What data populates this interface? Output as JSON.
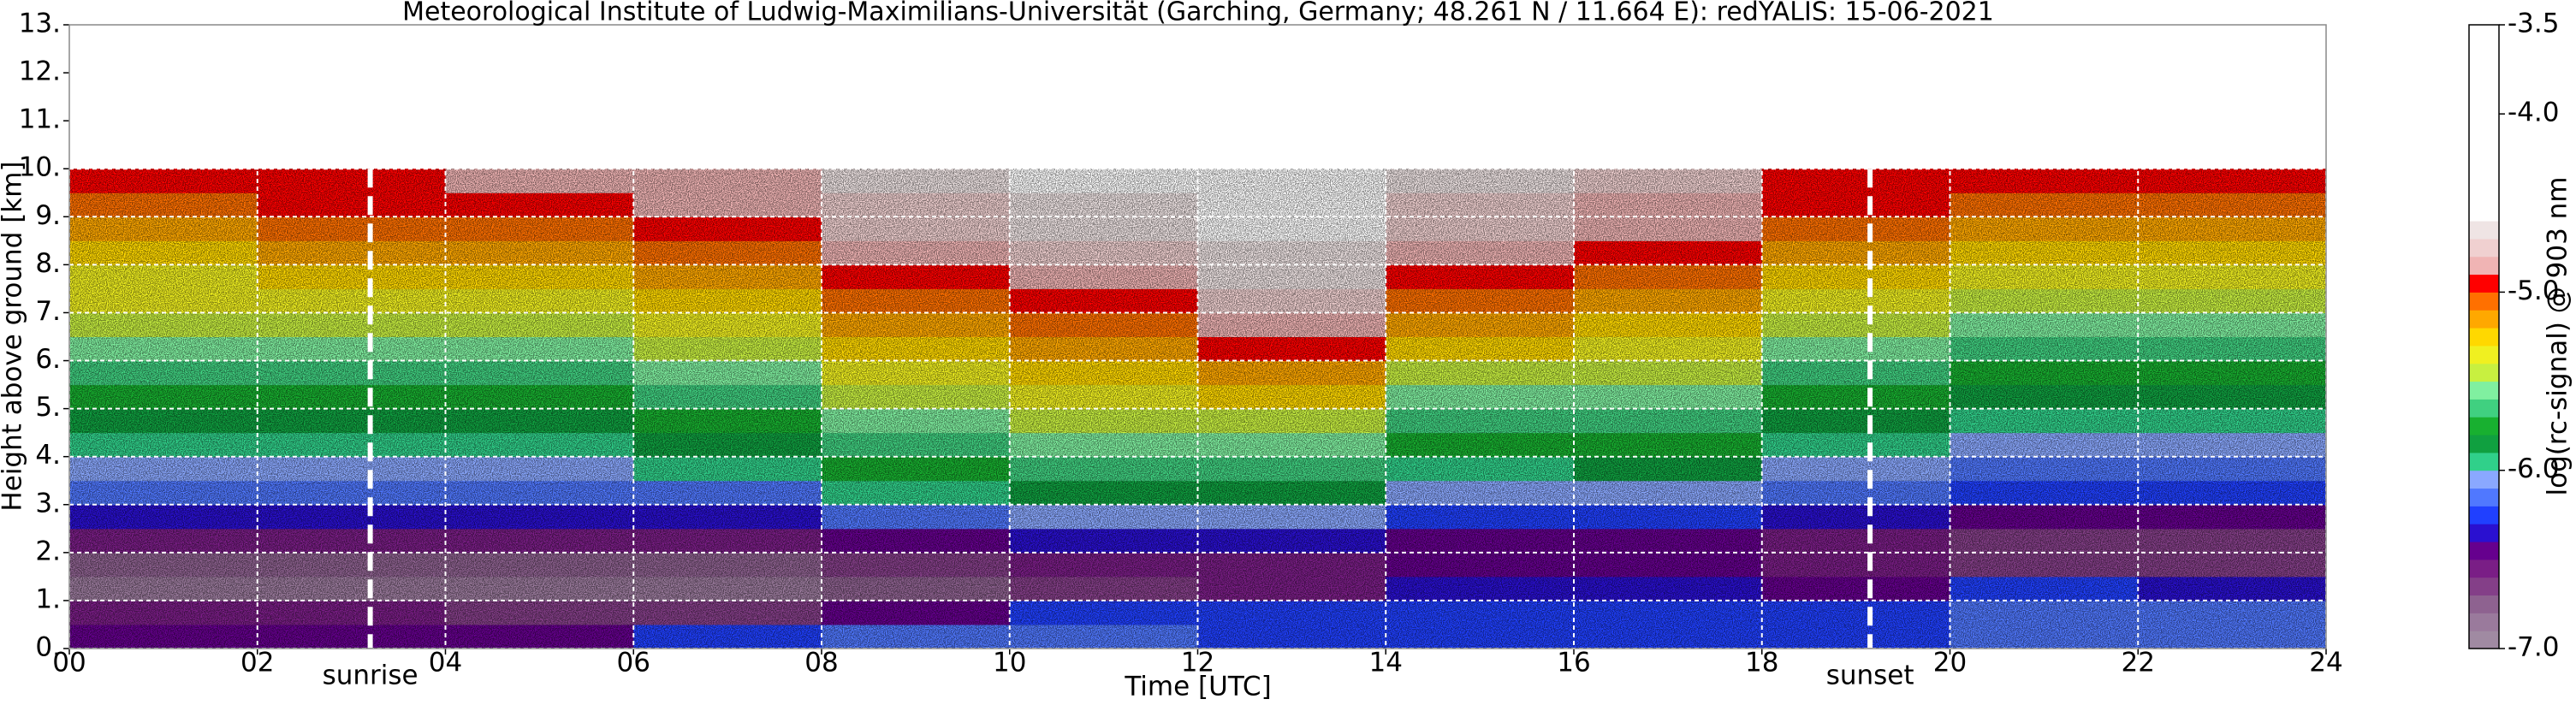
{
  "chart_data": {
    "type": "heatmap",
    "title": "Meteorological Institute of Ludwig-Maximilians-Universität (Garching, Germany; 48.261 N / 11.664 E):    redYALIS: 15-06-2021",
    "x_label": "Time [UTC]",
    "y_label": "Height above ground [km]",
    "colorbar_label": "log(rc-signal) @ 903 nm",
    "xlim": [
      0,
      24
    ],
    "xticks": [
      {
        "value": 0,
        "label": "00"
      },
      {
        "value": 2,
        "label": "02"
      },
      {
        "value": 4,
        "label": "04"
      },
      {
        "value": 6,
        "label": "06"
      },
      {
        "value": 8,
        "label": "08"
      },
      10,
      12,
      14,
      16,
      18,
      20,
      22,
      24
    ],
    "ylim": [
      0,
      13
    ],
    "yticks": [
      {
        "value": 0,
        "label": "0."
      },
      {
        "value": 1,
        "label": "1."
      },
      {
        "value": 2,
        "label": "2."
      },
      {
        "value": 3,
        "label": "3."
      },
      {
        "value": 4,
        "label": "4."
      },
      {
        "value": 5,
        "label": "5."
      },
      {
        "value": 6,
        "label": "6."
      },
      {
        "value": 7,
        "label": "7."
      },
      {
        "value": 8,
        "label": "8."
      },
      {
        "value": 9,
        "label": "9."
      },
      {
        "value": 10,
        "label": "10."
      },
      {
        "value": 11,
        "label": "11."
      },
      {
        "value": 12,
        "label": "12."
      },
      {
        "value": 13,
        "label": "13."
      }
    ],
    "grid": true,
    "grid_color": "#ffffff",
    "x": [
      0,
      2,
      4,
      6,
      8,
      10,
      12,
      14,
      16,
      18,
      20,
      22,
      24
    ],
    "y": [
      0,
      0.5,
      1,
      1.5,
      2,
      2.5,
      3,
      3.5,
      4,
      4.5,
      5,
      5.5,
      6,
      6.5,
      7,
      7.5,
      8,
      8.5,
      9,
      9.5,
      10
    ],
    "values": [
      [
        -6.5,
        -6.5,
        -6.5,
        -6.3,
        -6.2,
        -6.2,
        -6.3,
        -6.3,
        -6.3,
        -6.3,
        -6.2,
        -6.2
      ],
      [
        -6.6,
        -6.6,
        -6.7,
        -6.7,
        -6.5,
        -6.3,
        -6.3,
        -6.3,
        -6.3,
        -6.3,
        -6.2,
        -6.2
      ],
      [
        -6.9,
        -6.9,
        -6.9,
        -6.9,
        -6.8,
        -6.7,
        -6.6,
        -6.4,
        -6.4,
        -6.5,
        -6.3,
        -6.4
      ],
      [
        -6.8,
        -6.8,
        -6.8,
        -6.8,
        -6.7,
        -6.6,
        -6.6,
        -6.5,
        -6.5,
        -6.6,
        -6.7,
        -6.7
      ],
      [
        -6.6,
        -6.6,
        -6.6,
        -6.6,
        -6.5,
        -6.4,
        -6.4,
        -6.5,
        -6.5,
        -6.6,
        -6.7,
        -6.7
      ],
      [
        -6.4,
        -6.4,
        -6.4,
        -6.4,
        -6.2,
        -6.1,
        -6.1,
        -6.3,
        -6.3,
        -6.4,
        -6.5,
        -6.5
      ],
      [
        -6.2,
        -6.2,
        -6.2,
        -6.2,
        -6.0,
        -5.9,
        -5.9,
        -6.1,
        -6.1,
        -6.2,
        -6.3,
        -6.3
      ],
      [
        -6.1,
        -6.1,
        -6.1,
        -6.0,
        -5.8,
        -5.7,
        -5.7,
        -6.0,
        -5.9,
        -6.1,
        -6.2,
        -6.2
      ],
      [
        -6.0,
        -6.0,
        -6.0,
        -5.9,
        -5.7,
        -5.6,
        -5.6,
        -5.8,
        -5.8,
        -6.0,
        -6.1,
        -6.1
      ],
      [
        -5.9,
        -5.9,
        -5.9,
        -5.8,
        -5.6,
        -5.5,
        -5.5,
        -5.7,
        -5.7,
        -5.9,
        -6.0,
        -6.0
      ],
      [
        -5.8,
        -5.8,
        -5.8,
        -5.7,
        -5.5,
        -5.4,
        -5.3,
        -5.6,
        -5.6,
        -5.8,
        -5.9,
        -5.9
      ],
      [
        -5.7,
        -5.7,
        -5.7,
        -5.6,
        -5.4,
        -5.3,
        -5.2,
        -5.5,
        -5.5,
        -5.7,
        -5.8,
        -5.8
      ],
      [
        -5.6,
        -5.6,
        -5.6,
        -5.5,
        -5.3,
        -5.2,
        -5.0,
        -5.3,
        -5.4,
        -5.6,
        -5.7,
        -5.7
      ],
      [
        -5.5,
        -5.5,
        -5.5,
        -5.4,
        -5.2,
        -5.1,
        -4.9,
        -5.2,
        -5.3,
        -5.5,
        -5.6,
        -5.6
      ],
      [
        -5.4,
        -5.4,
        -5.4,
        -5.3,
        -5.1,
        -5.0,
        -4.8,
        -5.1,
        -5.2,
        -5.4,
        -5.5,
        -5.5
      ],
      [
        -5.4,
        -5.3,
        -5.3,
        -5.2,
        -5.0,
        -4.9,
        -4.7,
        -5.0,
        -5.1,
        -5.3,
        -5.4,
        -5.4
      ],
      [
        -5.3,
        -5.2,
        -5.2,
        -5.1,
        -4.9,
        -4.8,
        -4.7,
        -4.9,
        -5.0,
        -5.2,
        -5.3,
        -5.3
      ],
      [
        -5.2,
        -5.1,
        -5.1,
        -5.0,
        -4.8,
        -4.7,
        -4.6,
        -4.8,
        -4.9,
        -5.1,
        -5.2,
        -5.2
      ],
      [
        -5.1,
        -5.0,
        -5.0,
        -4.9,
        -4.8,
        -4.7,
        -4.6,
        -4.8,
        -4.9,
        -5.0,
        -5.1,
        -5.1
      ],
      [
        -5.0,
        -5.0,
        -4.9,
        -4.9,
        -4.7,
        -4.6,
        -4.5,
        -4.7,
        -4.8,
        -5.0,
        -5.0,
        -5.0
      ]
    ],
    "colorbar": {
      "lim": [
        -7.0,
        -3.5
      ],
      "ticks": [
        {
          "value": -7.0,
          "label": "-7.0"
        },
        {
          "value": -6.0,
          "label": "-6.0"
        },
        {
          "value": -5.0,
          "label": "-5.0"
        },
        {
          "value": -4.0,
          "label": "-4.0"
        },
        -3.5
      ],
      "bounds": [
        -7.0,
        -6.9,
        -6.8,
        -6.7,
        -6.6,
        -6.5,
        -6.4,
        -6.3,
        -6.2,
        -6.1,
        -6.0,
        -5.9,
        -5.8,
        -5.7,
        -5.6,
        -5.5,
        -5.4,
        -5.3,
        -5.2,
        -5.1,
        -5.0,
        -4.9,
        -4.8,
        -4.7,
        -4.6,
        -3.5
      ],
      "colors": [
        "#a08aa2",
        "#9a7a9c",
        "#8e6290",
        "#843f88",
        "#7a1e86",
        "#66008e",
        "#2a10d0",
        "#2040ff",
        "#5078ff",
        "#8aa8ff",
        "#30d08a",
        "#10a040",
        "#18b030",
        "#40d080",
        "#80f0a0",
        "#c8f040",
        "#f0f020",
        "#ffd800",
        "#ffa800",
        "#ff7000",
        "#ff0000",
        "#f0b4b4",
        "#f0d0d0",
        "#efe4e4",
        "#ffffff"
      ]
    },
    "annotations": [
      {
        "label": "sunrise",
        "x": 3.2
      },
      {
        "label": "sunset",
        "x": 19.15
      }
    ]
  }
}
